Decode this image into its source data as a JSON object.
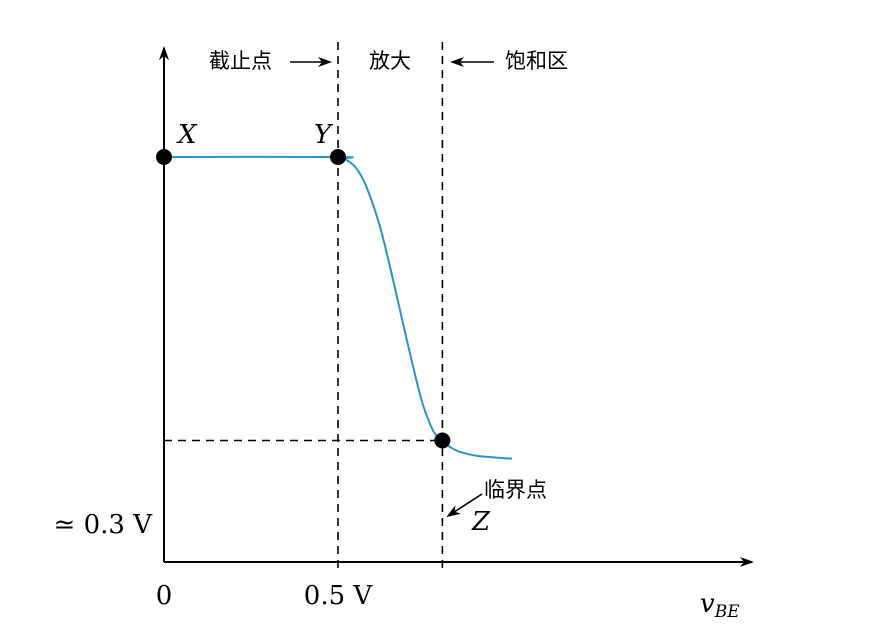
{
  "chart_data": {
    "type": "line",
    "title": "",
    "x_axis_label": "v",
    "x_axis_label_sub": "BE",
    "x_ticks": [
      "0",
      "0.5 V"
    ],
    "y_ticks": [
      "≃ 0.3 V"
    ],
    "region_labels": {
      "cutoff": "截止点",
      "amplify": "放大",
      "saturation": "饱和区"
    },
    "annotation": "临界点",
    "points": [
      {
        "name": "X",
        "x": 0,
        "y": 1.0
      },
      {
        "name": "Y",
        "x": 0.5,
        "y": 1.0
      },
      {
        "name": "Z",
        "x": 0.8,
        "y": 0.3
      }
    ],
    "series": [
      {
        "color": "#2a93c9",
        "x": [
          0,
          0.5,
          0.52,
          0.55,
          0.58,
          0.62,
          0.66,
          0.7,
          0.74,
          0.77,
          0.79,
          0.8,
          0.82,
          0.85,
          0.9,
          1.0
        ],
        "y": [
          1.0,
          1.0,
          0.995,
          0.975,
          0.93,
          0.83,
          0.69,
          0.54,
          0.4,
          0.33,
          0.305,
          0.3,
          0.285,
          0.272,
          0.262,
          0.255
        ]
      }
    ],
    "xlim": [
      0,
      1.72
    ],
    "ylim": [
      0,
      1.13
    ]
  }
}
